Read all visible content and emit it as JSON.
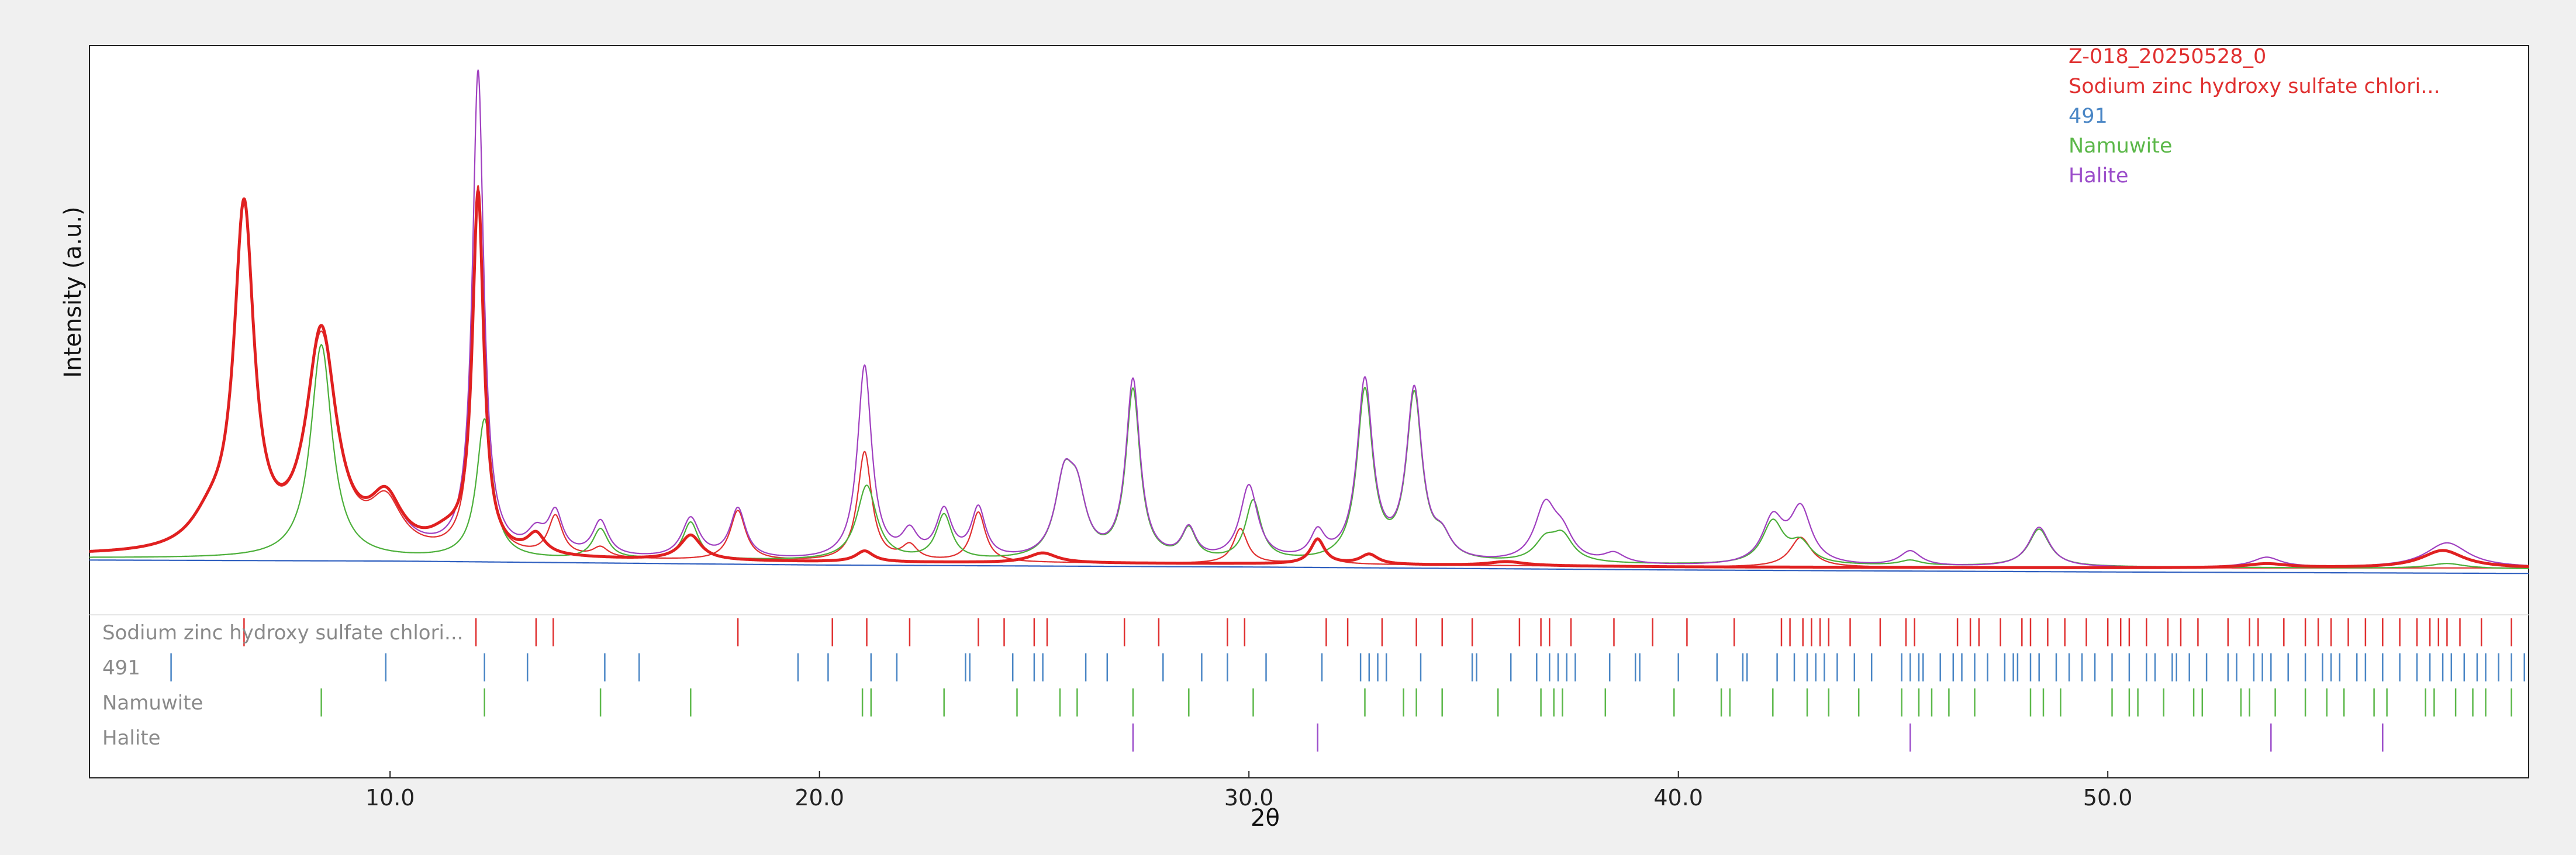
{
  "chart_data": {
    "type": "line",
    "xlabel": "2θ",
    "ylabel": "Intensity (a.u.)",
    "xlim": [
      3.0,
      59.8
    ],
    "ylim": [
      0,
      1000
    ],
    "x_ticks": [
      10.0,
      20.0,
      30.0,
      40.0,
      50.0
    ],
    "x_tick_labels": [
      "10.0",
      "20.0",
      "30.0",
      "40.0",
      "50.0"
    ],
    "legend": [
      {
        "label": "Z-018_20250528_0",
        "color": "#e03030"
      },
      {
        "label": "Sodium zinc hydroxy sulfate chlori...",
        "color": "#e03030"
      },
      {
        "label": "491",
        "color": "#4a86c5"
      },
      {
        "label": "Namuwite",
        "color": "#5cb84a"
      },
      {
        "label": "Halite",
        "color": "#9b4dca"
      }
    ],
    "series": [
      {
        "name": "Z-018_20250528_0",
        "color": "#e02020",
        "role": "observed",
        "baseline": [
          [
            3.0,
            10
          ],
          [
            10.0,
            4
          ],
          [
            20.0,
            -3
          ],
          [
            30.0,
            -6
          ],
          [
            40.0,
            -12
          ],
          [
            50.0,
            -14
          ],
          [
            59.8,
            -14
          ]
        ],
        "peaks": [
          [
            5.8,
            52,
            0.55
          ],
          [
            6.6,
            680,
            0.28
          ],
          [
            8.4,
            440,
            0.42
          ],
          [
            9.9,
            100,
            0.45
          ],
          [
            11.3,
            30,
            0.5
          ],
          [
            12.05,
            720,
            0.16
          ],
          [
            13.4,
            40,
            0.25
          ],
          [
            17.0,
            50,
            0.3
          ],
          [
            21.05,
            22,
            0.25
          ],
          [
            25.2,
            20,
            0.4
          ],
          [
            31.6,
            50,
            0.2
          ],
          [
            32.8,
            20,
            0.25
          ],
          [
            36.0,
            8,
            0.5
          ],
          [
            53.7,
            8,
            0.6
          ],
          [
            57.8,
            35,
            0.6
          ]
        ]
      },
      {
        "name": "Sodium zinc hydroxy sulfate chlori...",
        "color": "#e03030",
        "role": "calculated",
        "baseline": [
          [
            3.0,
            10
          ],
          [
            10.0,
            4
          ],
          [
            20.0,
            -3
          ],
          [
            30.0,
            -6
          ],
          [
            40.0,
            -12
          ],
          [
            50.0,
            -14
          ],
          [
            59.8,
            -14
          ]
        ],
        "peaks": [
          [
            5.8,
            50,
            0.55
          ],
          [
            6.6,
            670,
            0.28
          ],
          [
            8.4,
            430,
            0.42
          ],
          [
            9.9,
            95,
            0.45
          ],
          [
            12.05,
            740,
            0.16
          ],
          [
            13.85,
            80,
            0.2
          ],
          [
            14.9,
            20,
            0.22
          ],
          [
            18.1,
            100,
            0.22
          ],
          [
            21.05,
            220,
            0.2
          ],
          [
            22.1,
            30,
            0.22
          ],
          [
            23.7,
            100,
            0.2
          ],
          [
            29.8,
            70,
            0.2
          ],
          [
            31.6,
            52,
            0.2
          ],
          [
            42.85,
            60,
            0.3
          ]
        ]
      },
      {
        "name": "491",
        "color": "#3060c0",
        "role": "background",
        "baseline": [
          [
            3.0,
            2
          ],
          [
            10.0,
            0
          ],
          [
            20.0,
            -8
          ],
          [
            30.0,
            -12
          ],
          [
            40.0,
            -18
          ],
          [
            50.0,
            -22
          ],
          [
            59.8,
            -25
          ]
        ],
        "peaks": []
      },
      {
        "name": "Namuwite",
        "color": "#4caf3a",
        "role": "calculated",
        "baseline": [
          [
            3.0,
            6
          ],
          [
            59.8,
            -16
          ]
        ],
        "peaks": [
          [
            8.4,
            430,
            0.3
          ],
          [
            12.2,
            280,
            0.22
          ],
          [
            14.9,
            60,
            0.22
          ],
          [
            17.0,
            75,
            0.22
          ],
          [
            21.1,
            150,
            0.28
          ],
          [
            22.9,
            90,
            0.22
          ],
          [
            25.7,
            150,
            0.26
          ],
          [
            26.0,
            110,
            0.25
          ],
          [
            27.3,
            340,
            0.2
          ],
          [
            28.6,
            60,
            0.2
          ],
          [
            30.1,
            120,
            0.22
          ],
          [
            32.7,
            340,
            0.22
          ],
          [
            33.85,
            330,
            0.22
          ],
          [
            34.5,
            40,
            0.25
          ],
          [
            36.9,
            40,
            0.3
          ],
          [
            37.3,
            50,
            0.3
          ],
          [
            42.2,
            85,
            0.3
          ],
          [
            42.85,
            40,
            0.3
          ],
          [
            48.4,
            75,
            0.3
          ],
          [
            45.4,
            10,
            0.3
          ],
          [
            57.9,
            10,
            0.5
          ]
        ]
      },
      {
        "name": "Halite",
        "color": "#a040c0",
        "role": "total",
        "baseline": [
          [
            3.0,
            10
          ],
          [
            10.0,
            4
          ],
          [
            20.0,
            -3
          ],
          [
            30.0,
            -6
          ],
          [
            40.0,
            -12
          ],
          [
            50.0,
            -14
          ],
          [
            59.8,
            -14
          ]
        ],
        "peaks": [
          [
            5.8,
            50,
            0.55
          ],
          [
            6.6,
            680,
            0.28
          ],
          [
            8.4,
            440,
            0.42
          ],
          [
            9.9,
            100,
            0.45
          ],
          [
            12.05,
            970,
            0.16
          ],
          [
            13.4,
            40,
            0.25
          ],
          [
            13.85,
            80,
            0.2
          ],
          [
            14.9,
            70,
            0.22
          ],
          [
            17.0,
            80,
            0.25
          ],
          [
            18.1,
            100,
            0.22
          ],
          [
            21.05,
            390,
            0.2
          ],
          [
            22.1,
            50,
            0.22
          ],
          [
            22.9,
            95,
            0.22
          ],
          [
            23.7,
            100,
            0.2
          ],
          [
            25.7,
            150,
            0.26
          ],
          [
            26.0,
            110,
            0.25
          ],
          [
            27.3,
            360,
            0.2
          ],
          [
            28.6,
            60,
            0.2
          ],
          [
            30.0,
            150,
            0.25
          ],
          [
            31.6,
            52,
            0.2
          ],
          [
            32.7,
            360,
            0.22
          ],
          [
            33.85,
            340,
            0.22
          ],
          [
            34.5,
            40,
            0.25
          ],
          [
            36.9,
            110,
            0.3
          ],
          [
            37.3,
            50,
            0.3
          ],
          [
            38.5,
            20,
            0.3
          ],
          [
            42.2,
            90,
            0.3
          ],
          [
            42.85,
            110,
            0.3
          ],
          [
            45.4,
            30,
            0.3
          ],
          [
            48.4,
            80,
            0.3
          ],
          [
            53.7,
            20,
            0.4
          ],
          [
            57.9,
            50,
            0.6
          ]
        ]
      }
    ],
    "phase_markers": [
      {
        "label": "Sodium zinc hydroxy sulfate chlori...",
        "color": "#e03030",
        "positions": [
          6.6,
          12.0,
          13.4,
          13.8,
          18.1,
          20.3,
          21.1,
          22.1,
          23.7,
          24.3,
          25.0,
          25.3,
          27.1,
          27.9,
          29.5,
          29.9,
          31.8,
          32.3,
          33.1,
          33.9,
          34.5,
          35.2,
          36.3,
          36.8,
          37.0,
          37.5,
          38.5,
          39.4,
          40.2,
          41.3,
          42.4,
          42.6,
          42.9,
          43.1,
          43.3,
          43.5,
          44.0,
          44.7,
          45.3,
          45.5,
          46.5,
          46.8,
          47.0,
          47.5,
          48.0,
          48.2,
          48.6,
          49.0,
          49.5,
          50.0,
          50.3,
          50.5,
          50.9,
          51.4,
          51.7,
          52.1,
          52.8,
          53.3,
          53.5,
          54.1,
          54.6,
          54.9,
          55.2,
          55.6,
          56.0,
          56.4,
          56.8,
          57.2,
          57.5,
          57.7,
          57.9,
          58.2,
          58.7,
          59.4
        ]
      },
      {
        "label": "491",
        "color": "#4a86c5",
        "positions": [
          4.9,
          9.9,
          12.2,
          13.2,
          15.0,
          15.8,
          19.5,
          20.2,
          21.2,
          21.8,
          23.4,
          23.5,
          24.5,
          25.0,
          25.2,
          26.2,
          26.7,
          28.0,
          28.9,
          29.5,
          30.4,
          31.7,
          32.6,
          32.8,
          33.0,
          33.2,
          34.0,
          35.2,
          35.3,
          36.1,
          36.7,
          37.0,
          37.2,
          37.4,
          37.6,
          38.4,
          39.0,
          39.1,
          40.0,
          40.9,
          41.5,
          41.6,
          42.3,
          42.7,
          43.0,
          43.2,
          43.4,
          43.7,
          44.1,
          44.5,
          45.2,
          45.4,
          45.6,
          45.7,
          46.1,
          46.4,
          46.6,
          46.9,
          47.2,
          47.6,
          47.8,
          47.9,
          48.2,
          48.4,
          48.8,
          49.1,
          49.4,
          49.7,
          50.1,
          50.5,
          50.9,
          51.1,
          51.5,
          51.6,
          51.9,
          52.3,
          52.8,
          53.0,
          53.4,
          53.6,
          53.8,
          54.2,
          54.6,
          55.0,
          55.2,
          55.4,
          55.8,
          56.0,
          56.4,
          56.8,
          57.2,
          57.5,
          57.8,
          58.0,
          58.3,
          58.6,
          58.8,
          59.1,
          59.4,
          59.7
        ]
      },
      {
        "label": "Namuwite",
        "color": "#5cb84a",
        "positions": [
          8.4,
          12.2,
          14.9,
          17.0,
          21.0,
          21.2,
          22.9,
          24.6,
          25.6,
          26.0,
          27.3,
          28.6,
          30.1,
          32.7,
          33.6,
          33.9,
          34.5,
          35.8,
          36.8,
          37.1,
          37.3,
          38.3,
          39.9,
          41.0,
          41.2,
          42.2,
          43.0,
          43.5,
          44.2,
          45.2,
          45.6,
          45.9,
          46.3,
          46.9,
          48.2,
          48.5,
          48.9,
          50.1,
          50.5,
          50.7,
          51.3,
          52.0,
          52.2,
          53.1,
          53.3,
          53.9,
          54.6,
          55.1,
          55.5,
          56.2,
          56.5,
          57.4,
          57.6,
          58.1,
          58.5,
          58.8,
          59.4
        ]
      },
      {
        "label": "Halite",
        "color": "#9b4dca",
        "positions": [
          27.3,
          31.6,
          45.4,
          53.8,
          56.4
        ]
      }
    ]
  }
}
